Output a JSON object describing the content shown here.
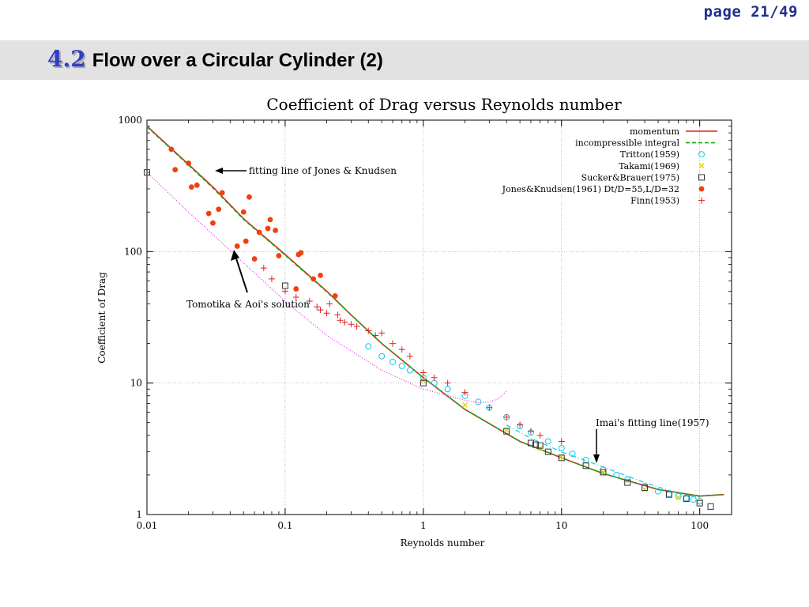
{
  "page": {
    "number": "page 21/49"
  },
  "slide": {
    "section": "4.2",
    "title": "Flow over a Circular Cylinder (2)"
  },
  "chart_data": {
    "type": "scatter",
    "title": "Coefficient of Drag versus Reynolds number",
    "xlabel": "Reynolds number",
    "ylabel": "Coefficient of Drag",
    "xscale": "log",
    "yscale": "log",
    "xlim": [
      0.01,
      170
    ],
    "ylim": [
      1,
      1000
    ],
    "grid": true,
    "legend_position": "top-right",
    "xticks": [
      "0.01",
      "0.1",
      "1",
      "10",
      "100"
    ],
    "yticks": [
      "1",
      "10",
      "100",
      "1000"
    ],
    "annotations": [
      {
        "text": "fitting line of Jones & Knudsen"
      },
      {
        "text": "Tomotika & Aoi's solution"
      },
      {
        "text": "Imai's fitting line(1957)"
      }
    ],
    "series": [
      {
        "name": "momentum",
        "style": "line",
        "color": "#e02020",
        "x": [
          0.01,
          0.02,
          0.03,
          0.05,
          0.1,
          0.2,
          0.3,
          0.5,
          1,
          2,
          5,
          10,
          20,
          50,
          100,
          150
        ],
        "y": [
          900,
          460,
          310,
          178,
          95,
          50,
          33,
          20,
          11,
          6.3,
          3.6,
          2.7,
          2.05,
          1.55,
          1.38,
          1.42
        ]
      },
      {
        "name": "incompressible integral",
        "style": "dashed",
        "color": "#10b010",
        "x": [
          0.01,
          0.02,
          0.03,
          0.05,
          0.1,
          0.2,
          0.3,
          0.5,
          1,
          2,
          5,
          10,
          20,
          50,
          100,
          150
        ],
        "y": [
          890,
          455,
          305,
          176,
          94,
          49.5,
          33,
          20,
          11,
          6.3,
          3.6,
          2.7,
          2.05,
          1.55,
          1.38,
          1.42
        ]
      },
      {
        "name": "Tritton(1959)",
        "style": "circle",
        "color": "#10c8e8",
        "x": [
          0.4,
          0.5,
          0.6,
          0.7,
          0.8,
          1,
          1.2,
          1.5,
          2,
          2.5,
          3,
          4,
          5,
          6,
          8,
          10,
          12,
          15,
          20,
          25,
          30,
          40,
          50,
          60,
          70,
          80,
          90,
          100
        ],
        "y": [
          19,
          16,
          14.5,
          13.5,
          12.5,
          11,
          10,
          9,
          8,
          7.2,
          6.5,
          5.5,
          4.7,
          4.2,
          3.6,
          3.2,
          2.9,
          2.6,
          2.2,
          2.0,
          1.85,
          1.65,
          1.5,
          1.43,
          1.38,
          1.33,
          1.3,
          1.26
        ]
      },
      {
        "name": "Takami(1969)",
        "style": "x",
        "color": "#e8d010",
        "x": [
          1,
          2,
          4,
          7,
          10,
          20,
          40,
          70
        ],
        "y": [
          10.5,
          6.8,
          4.4,
          3.2,
          2.75,
          2.1,
          1.55,
          1.35
        ]
      },
      {
        "name": "Sucker&Brauer(1975)",
        "style": "square",
        "color": "#333333",
        "x": [
          0.01,
          0.1,
          1,
          4,
          6,
          6.5,
          7,
          8,
          10,
          15,
          20,
          30,
          40,
          60,
          80,
          100,
          120
        ],
        "y": [
          400,
          55,
          10,
          4.3,
          3.5,
          3.4,
          3.35,
          3.0,
          2.7,
          2.35,
          2.1,
          1.75,
          1.6,
          1.42,
          1.32,
          1.22,
          1.15
        ]
      },
      {
        "name": "Jones&Knudsen(1961) Dt/D=55,L/D=32",
        "style": "dot",
        "color": "#f04010",
        "x": [
          0.015,
          0.016,
          0.02,
          0.021,
          0.023,
          0.028,
          0.03,
          0.033,
          0.035,
          0.045,
          0.05,
          0.052,
          0.055,
          0.06,
          0.065,
          0.075,
          0.078,
          0.085,
          0.09,
          0.12,
          0.125,
          0.13,
          0.16,
          0.18,
          0.23
        ],
        "y": [
          600,
          420,
          470,
          310,
          320,
          195,
          165,
          210,
          280,
          110,
          200,
          120,
          260,
          88,
          140,
          150,
          175,
          145,
          93,
          52,
          95,
          98,
          62,
          66,
          46
        ]
      },
      {
        "name": "Finn(1953)",
        "style": "plus",
        "color": "#e02020",
        "x": [
          0.07,
          0.08,
          0.1,
          0.12,
          0.15,
          0.17,
          0.18,
          0.2,
          0.21,
          0.24,
          0.25,
          0.27,
          0.3,
          0.33,
          0.4,
          0.45,
          0.5,
          0.6,
          0.7,
          0.8,
          1,
          1.2,
          1.5,
          2,
          3,
          4,
          5,
          6,
          7,
          10
        ],
        "y": [
          75,
          62,
          50,
          45,
          42,
          38,
          36,
          34,
          40,
          33,
          30,
          29,
          28,
          27,
          25,
          23,
          24,
          20,
          18,
          16,
          12,
          11,
          10,
          8.5,
          6.5,
          5.5,
          4.8,
          4.3,
          4.0,
          3.6
        ]
      },
      {
        "name": "",
        "style": "dotted",
        "color": "#e030e0",
        "x": [
          0.01,
          0.02,
          0.05,
          0.1,
          0.2,
          0.5,
          1,
          2,
          2.5,
          3,
          3.5,
          4
        ],
        "y": [
          400,
          200,
          82,
          42,
          23,
          12.5,
          9,
          7.4,
          7.1,
          7.2,
          7.6,
          8.7
        ]
      },
      {
        "name": "",
        "style": "dashdot",
        "color": "#10c8e8",
        "x": [
          4,
          6,
          10,
          20,
          40,
          70,
          100
        ],
        "y": [
          4.8,
          3.8,
          3.0,
          2.3,
          1.75,
          1.45,
          1.35
        ]
      }
    ]
  }
}
